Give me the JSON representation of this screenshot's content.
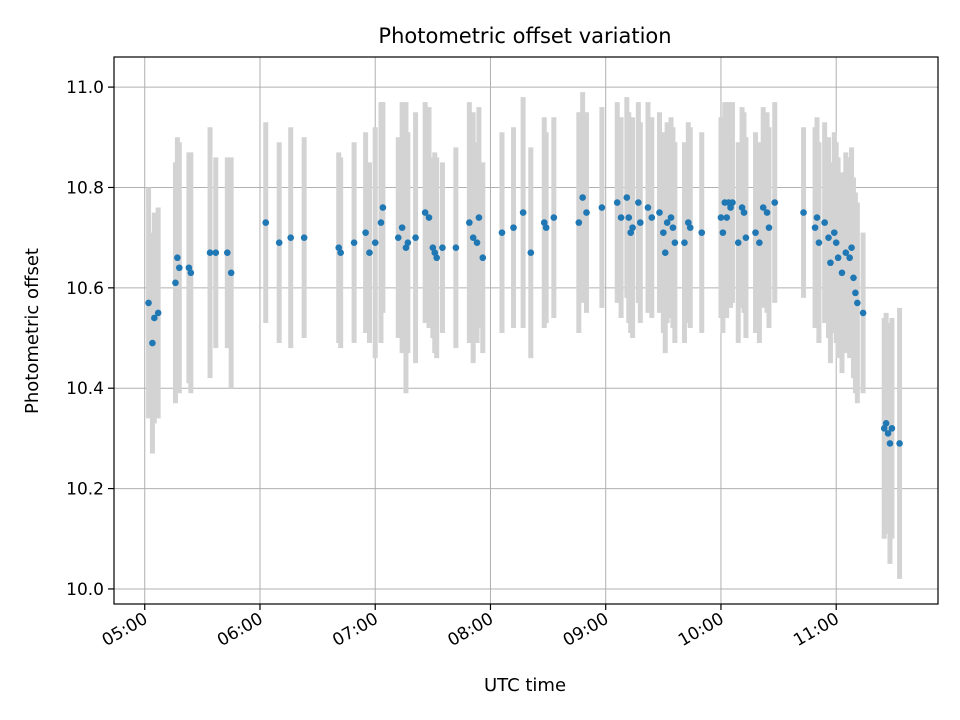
{
  "chart_data": {
    "type": "scatter",
    "title": "Photometric offset variation",
    "xlabel": "UTC time",
    "ylabel": "Photometric offset",
    "x_unit": "UTC hh:mm",
    "xlim": [
      "04:44",
      "11:53"
    ],
    "ylim": [
      9.97,
      11.06
    ],
    "x_ticks": [
      "05:00",
      "06:00",
      "07:00",
      "08:00",
      "09:00",
      "10:00",
      "11:00"
    ],
    "y_ticks": [
      10.0,
      10.2,
      10.4,
      10.6,
      10.8,
      11.0
    ],
    "y_tick_labels": [
      "10.0",
      "10.2",
      "10.4",
      "10.6",
      "10.8",
      "11.0"
    ],
    "grid": true,
    "colors": {
      "point": "#1f77b4",
      "errorbar": "#d3d3d3",
      "grid": "#b0b0b0"
    },
    "points": [
      {
        "t": "05:02",
        "y": 10.57,
        "err": 0.23
      },
      {
        "t": "05:04",
        "y": 10.49,
        "err": 0.22
      },
      {
        "t": "05:05",
        "y": 10.54,
        "err": 0.21
      },
      {
        "t": "05:07",
        "y": 10.55,
        "err": 0.21
      },
      {
        "t": "05:16",
        "y": 10.61,
        "err": 0.24
      },
      {
        "t": "05:17",
        "y": 10.66,
        "err": 0.24
      },
      {
        "t": "05:18",
        "y": 10.64,
        "err": 0.25
      },
      {
        "t": "05:23",
        "y": 10.64,
        "err": 0.23
      },
      {
        "t": "05:24",
        "y": 10.63,
        "err": 0.24
      },
      {
        "t": "05:34",
        "y": 10.67,
        "err": 0.25
      },
      {
        "t": "05:37",
        "y": 10.67,
        "err": 0.19
      },
      {
        "t": "05:43",
        "y": 10.67,
        "err": 0.19
      },
      {
        "t": "05:45",
        "y": 10.63,
        "err": 0.23
      },
      {
        "t": "06:03",
        "y": 10.73,
        "err": 0.2
      },
      {
        "t": "06:10",
        "y": 10.69,
        "err": 0.2
      },
      {
        "t": "06:16",
        "y": 10.7,
        "err": 0.22
      },
      {
        "t": "06:23",
        "y": 10.7,
        "err": 0.2
      },
      {
        "t": "06:41",
        "y": 10.68,
        "err": 0.19
      },
      {
        "t": "06:42",
        "y": 10.67,
        "err": 0.19
      },
      {
        "t": "06:49",
        "y": 10.69,
        "err": 0.2
      },
      {
        "t": "06:55",
        "y": 10.71,
        "err": 0.2
      },
      {
        "t": "06:57",
        "y": 10.67,
        "err": 0.18
      },
      {
        "t": "07:00",
        "y": 10.69,
        "err": 0.23
      },
      {
        "t": "07:03",
        "y": 10.73,
        "err": 0.24
      },
      {
        "t": "07:04",
        "y": 10.76,
        "err": 0.21
      },
      {
        "t": "07:12",
        "y": 10.7,
        "err": 0.2
      },
      {
        "t": "07:14",
        "y": 10.72,
        "err": 0.25
      },
      {
        "t": "07:16",
        "y": 10.68,
        "err": 0.29
      },
      {
        "t": "07:17",
        "y": 10.69,
        "err": 0.22
      },
      {
        "t": "07:21",
        "y": 10.7,
        "err": 0.25
      },
      {
        "t": "07:26",
        "y": 10.75,
        "err": 0.22
      },
      {
        "t": "07:28",
        "y": 10.74,
        "err": 0.22
      },
      {
        "t": "07:30",
        "y": 10.68,
        "err": 0.18
      },
      {
        "t": "07:31",
        "y": 10.67,
        "err": 0.2
      },
      {
        "t": "07:32",
        "y": 10.66,
        "err": 0.2
      },
      {
        "t": "07:35",
        "y": 10.68,
        "err": 0.17
      },
      {
        "t": "07:42",
        "y": 10.68,
        "err": 0.2
      },
      {
        "t": "07:49",
        "y": 10.73,
        "err": 0.24
      },
      {
        "t": "07:51",
        "y": 10.7,
        "err": 0.25
      },
      {
        "t": "07:53",
        "y": 10.69,
        "err": 0.2
      },
      {
        "t": "07:54",
        "y": 10.74,
        "err": 0.22
      },
      {
        "t": "07:56",
        "y": 10.66,
        "err": 0.19
      },
      {
        "t": "08:06",
        "y": 10.71,
        "err": 0.2
      },
      {
        "t": "08:12",
        "y": 10.72,
        "err": 0.2
      },
      {
        "t": "08:17",
        "y": 10.75,
        "err": 0.23
      },
      {
        "t": "08:21",
        "y": 10.67,
        "err": 0.21
      },
      {
        "t": "08:28",
        "y": 10.73,
        "err": 0.21
      },
      {
        "t": "08:29",
        "y": 10.72,
        "err": 0.19
      },
      {
        "t": "08:33",
        "y": 10.74,
        "err": 0.2
      },
      {
        "t": "08:46",
        "y": 10.73,
        "err": 0.22
      },
      {
        "t": "08:48",
        "y": 10.78,
        "err": 0.21
      },
      {
        "t": "08:50",
        "y": 10.75,
        "err": 0.2
      },
      {
        "t": "08:58",
        "y": 10.76,
        "err": 0.2
      },
      {
        "t": "09:06",
        "y": 10.77,
        "err": 0.2
      },
      {
        "t": "09:08",
        "y": 10.74,
        "err": 0.2
      },
      {
        "t": "09:11",
        "y": 10.78,
        "err": 0.2
      },
      {
        "t": "09:12",
        "y": 10.74,
        "err": 0.21
      },
      {
        "t": "09:13",
        "y": 10.71,
        "err": 0.2
      },
      {
        "t": "09:14",
        "y": 10.72,
        "err": 0.22
      },
      {
        "t": "09:17",
        "y": 10.77,
        "err": 0.2
      },
      {
        "t": "09:18",
        "y": 10.73,
        "err": 0.2
      },
      {
        "t": "09:22",
        "y": 10.76,
        "err": 0.21
      },
      {
        "t": "09:24",
        "y": 10.74,
        "err": 0.2
      },
      {
        "t": "09:28",
        "y": 10.75,
        "err": 0.2
      },
      {
        "t": "09:30",
        "y": 10.71,
        "err": 0.2
      },
      {
        "t": "09:31",
        "y": 10.67,
        "err": 0.2
      },
      {
        "t": "09:32",
        "y": 10.73,
        "err": 0.2
      },
      {
        "t": "09:34",
        "y": 10.74,
        "err": 0.2
      },
      {
        "t": "09:35",
        "y": 10.72,
        "err": 0.2
      },
      {
        "t": "09:36",
        "y": 10.69,
        "err": 0.2
      },
      {
        "t": "09:41",
        "y": 10.69,
        "err": 0.2
      },
      {
        "t": "09:43",
        "y": 10.73,
        "err": 0.2
      },
      {
        "t": "09:44",
        "y": 10.72,
        "err": 0.2
      },
      {
        "t": "09:50",
        "y": 10.71,
        "err": 0.2
      },
      {
        "t": "10:00",
        "y": 10.74,
        "err": 0.2
      },
      {
        "t": "10:01",
        "y": 10.71,
        "err": 0.2
      },
      {
        "t": "10:02",
        "y": 10.77,
        "err": 0.2
      },
      {
        "t": "10:03",
        "y": 10.74,
        "err": 0.2
      },
      {
        "t": "10:04",
        "y": 10.77,
        "err": 0.2
      },
      {
        "t": "10:05",
        "y": 10.76,
        "err": 0.2
      },
      {
        "t": "10:06",
        "y": 10.77,
        "err": 0.2
      },
      {
        "t": "10:09",
        "y": 10.69,
        "err": 0.2
      },
      {
        "t": "10:11",
        "y": 10.76,
        "err": 0.2
      },
      {
        "t": "10:12",
        "y": 10.75,
        "err": 0.2
      },
      {
        "t": "10:13",
        "y": 10.7,
        "err": 0.2
      },
      {
        "t": "10:18",
        "y": 10.71,
        "err": 0.2
      },
      {
        "t": "10:20",
        "y": 10.69,
        "err": 0.2
      },
      {
        "t": "10:22",
        "y": 10.76,
        "err": 0.2
      },
      {
        "t": "10:24",
        "y": 10.75,
        "err": 0.2
      },
      {
        "t": "10:25",
        "y": 10.72,
        "err": 0.2
      },
      {
        "t": "10:28",
        "y": 10.77,
        "err": 0.2
      },
      {
        "t": "10:43",
        "y": 10.75,
        "err": 0.17
      },
      {
        "t": "10:49",
        "y": 10.72,
        "err": 0.2
      },
      {
        "t": "10:50",
        "y": 10.74,
        "err": 0.2
      },
      {
        "t": "10:51",
        "y": 10.69,
        "err": 0.2
      },
      {
        "t": "10:54",
        "y": 10.73,
        "err": 0.2
      },
      {
        "t": "10:56",
        "y": 10.7,
        "err": 0.2
      },
      {
        "t": "10:57",
        "y": 10.65,
        "err": 0.2
      },
      {
        "t": "10:59",
        "y": 10.71,
        "err": 0.2
      },
      {
        "t": "11:00",
        "y": 10.69,
        "err": 0.2
      },
      {
        "t": "11:01",
        "y": 10.66,
        "err": 0.2
      },
      {
        "t": "11:03",
        "y": 10.63,
        "err": 0.2
      },
      {
        "t": "11:05",
        "y": 10.67,
        "err": 0.2
      },
      {
        "t": "11:07",
        "y": 10.66,
        "err": 0.2
      },
      {
        "t": "11:08",
        "y": 10.68,
        "err": 0.2
      },
      {
        "t": "11:09",
        "y": 10.62,
        "err": 0.2
      },
      {
        "t": "11:10",
        "y": 10.59,
        "err": 0.2
      },
      {
        "t": "11:11",
        "y": 10.57,
        "err": 0.2
      },
      {
        "t": "11:14",
        "y": 10.55,
        "err": 0.16
      },
      {
        "t": "11:25",
        "y": 10.32,
        "err": 0.22
      },
      {
        "t": "11:26",
        "y": 10.33,
        "err": 0.22
      },
      {
        "t": "11:27",
        "y": 10.31,
        "err": 0.2
      },
      {
        "t": "11:28",
        "y": 10.29,
        "err": 0.24
      },
      {
        "t": "11:29",
        "y": 10.32,
        "err": 0.22
      },
      {
        "t": "11:33",
        "y": 10.29,
        "err": 0.27
      }
    ]
  }
}
